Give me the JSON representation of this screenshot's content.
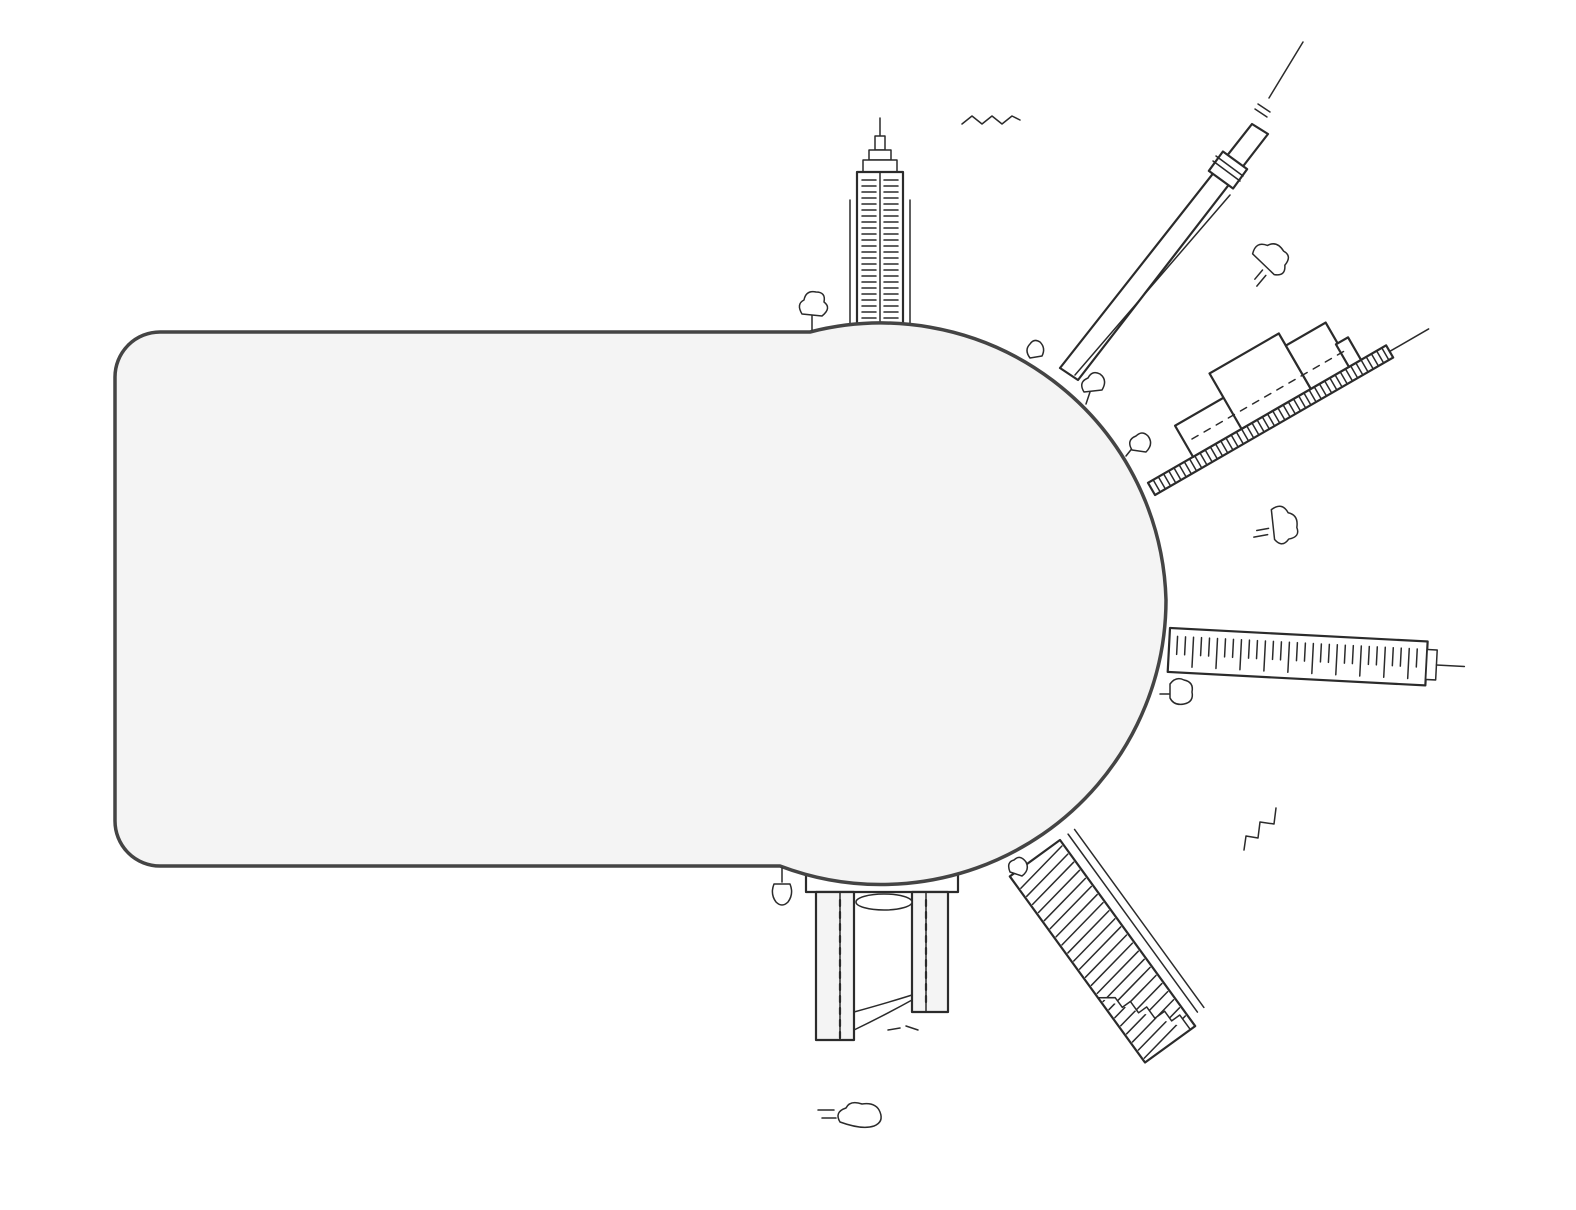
{
  "scene": {
    "shape": "rounded-panel-with-semicircle",
    "panel_fill": "#f4f4f4",
    "panel_stroke": "#444444",
    "line_color": "#2b2b2b",
    "background": "#ffffff",
    "icons": [
      "skyscraper-icon",
      "tv-tower-icon",
      "low-building-icon",
      "slanted-tower-icon",
      "striped-tower-icon",
      "twin-tower-icon",
      "tree-icon",
      "cloud-icon",
      "bird-icon"
    ]
  }
}
